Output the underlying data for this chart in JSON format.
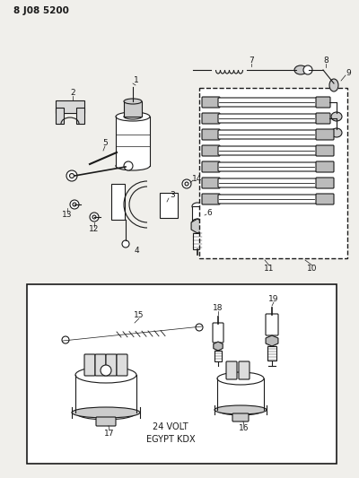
{
  "title": "8 J08 5200",
  "bg_color": "#f0efeb",
  "line_color": "#1a1a1a",
  "text_color": "#1a1a1a",
  "figsize": [
    4.0,
    5.33
  ],
  "dpi": 100
}
